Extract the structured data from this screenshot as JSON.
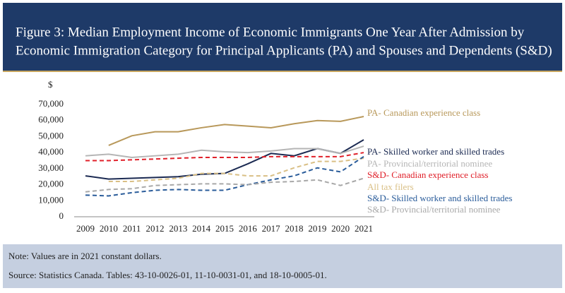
{
  "chart_data": {
    "type": "line",
    "title": "Figure 3: Median Employment Income of Economic Immigrants One Year After Admission by",
    "subtitle": "Economic Immigration Category for Principal Applicants (PA) and Spouses and Dependents (S&D)",
    "y_label": "$",
    "x": [
      "2009",
      "2010",
      "2011",
      "2012",
      "2013",
      "2014",
      "2015",
      "2016",
      "2017",
      "2018",
      "2019",
      "2020",
      "2021"
    ],
    "ylim": [
      0,
      70000
    ],
    "yticks": [
      0,
      {
        "value": 10000,
        "label": "10,000"
      },
      {
        "value": 20000,
        "label": "20,000"
      },
      {
        "value": 30000,
        "label": "30,000"
      },
      {
        "value": 40000,
        "label": "40,000"
      },
      {
        "value": 50000,
        "label": "50,000"
      },
      {
        "value": 60000,
        "label": "60,000"
      },
      {
        "value": 70000,
        "label": "70,000"
      }
    ],
    "series": [
      {
        "name": "PA- Canadian experience class",
        "color": "#b8985a",
        "dashed": false,
        "values": [
          null,
          44500,
          50500,
          53000,
          53000,
          55500,
          57500,
          56500,
          55500,
          58000,
          60000,
          59500,
          62500
        ]
      },
      {
        "name": "PA- Skilled worker and skilled trades",
        "color": "#1b2a52",
        "dashed": false,
        "values": [
          25500,
          23500,
          24000,
          24500,
          25000,
          26500,
          27000,
          33000,
          39500,
          38000,
          42500,
          39500,
          48000
        ]
      },
      {
        "name": "PA- Provincial/territorial nominee",
        "color": "#b5b5b5",
        "dashed": false,
        "values": [
          38000,
          39000,
          37000,
          38000,
          39000,
          41500,
          40500,
          40000,
          41000,
          42500,
          42500,
          39500,
          44000
        ]
      },
      {
        "name": "S&D- Canadian experience class",
        "color": "#e0202a",
        "dashed": true,
        "values": [
          35000,
          35000,
          35500,
          36000,
          36500,
          37000,
          37000,
          37000,
          37500,
          37500,
          37500,
          37500,
          40000
        ]
      },
      {
        "name": "All tax filers",
        "color": "#d9bf85",
        "dashed": true,
        "values": [
          null,
          22000,
          22000,
          23000,
          24000,
          27000,
          27000,
          25500,
          25500,
          30500,
          34500,
          34500,
          36500
        ]
      },
      {
        "name": "S&D- Skilled worker and skilled trades",
        "color": "#2a5c9a",
        "dashed": true,
        "values": [
          13500,
          13000,
          15000,
          16500,
          17000,
          16500,
          16500,
          20000,
          23000,
          25500,
          30500,
          28000,
          37500
        ]
      },
      {
        "name": "S&D- Provincial/territorial nominee",
        "color": "#a8a8a8",
        "dashed": true,
        "values": [
          15500,
          17000,
          17500,
          19500,
          20000,
          20500,
          20500,
          20000,
          21500,
          22000,
          23000,
          19500,
          24000
        ]
      }
    ],
    "notes": [
      "Note: Values are in 2021 constant dollars.",
      "Source: Statistics Canada. Tables: 43-10-0026-01, 11-10-0031-01, and 18-10-0005-01."
    ]
  }
}
